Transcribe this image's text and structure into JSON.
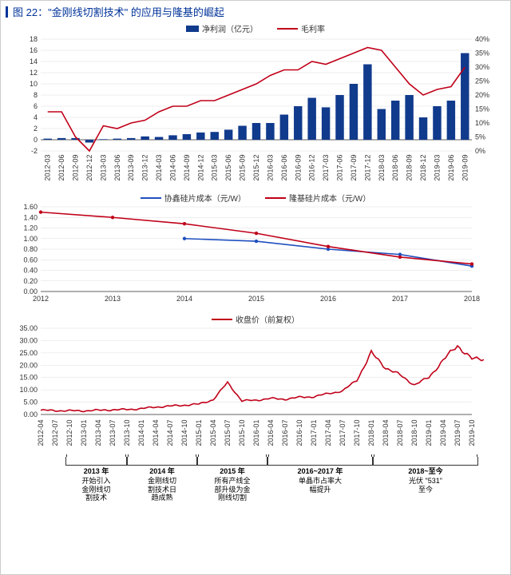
{
  "title": "图 22：\"金刚线切割技术\" 的应用与隆基的崛起",
  "title_color": "#003399",
  "chart1": {
    "type": "combo-bar-line",
    "legend": [
      {
        "label": "净利润（亿元）",
        "kind": "bar",
        "color": "#103a8c"
      },
      {
        "label": "毛利率",
        "kind": "line",
        "color": "#c00018"
      }
    ],
    "y_left": {
      "min": -2,
      "max": 18,
      "step": 2,
      "ticks": [
        "-2",
        "0",
        "2",
        "4",
        "6",
        "8",
        "10",
        "12",
        "14",
        "16",
        "18"
      ]
    },
    "y_right": {
      "min": 0,
      "max": 0.4,
      "step": 0.05,
      "ticks": [
        "0%",
        "5%",
        "10%",
        "15%",
        "20%",
        "25%",
        "30%",
        "35%",
        "40%"
      ]
    },
    "x_labels": [
      "2012-03",
      "2012-06",
      "2012-09",
      "2012-12",
      "2013-03",
      "2013-06",
      "2013-09",
      "2013-12",
      "2014-03",
      "2014-06",
      "2014-09",
      "2014-12",
      "2015-03",
      "2015-06",
      "2015-09",
      "2015-12",
      "2016-03",
      "2016-06",
      "2016-09",
      "2016-12",
      "2017-03",
      "2017-06",
      "2017-09",
      "2017-12",
      "2018-03",
      "2018-06",
      "2018-09",
      "2018-12",
      "2019-03",
      "2019-06",
      "2019-09"
    ],
    "bars": [
      0.2,
      0.3,
      0.3,
      -0.5,
      0.1,
      0.2,
      0.3,
      0.6,
      0.5,
      0.8,
      1.0,
      1.3,
      1.4,
      1.8,
      2.5,
      3.0,
      3.0,
      4.5,
      6.0,
      7.5,
      5.8,
      8.0,
      10.0,
      13.5,
      5.5,
      7.0,
      8.0,
      4.0,
      6.0,
      7.0,
      15.5
    ],
    "line_pct": [
      0.14,
      0.14,
      0.05,
      0.0,
      0.09,
      0.08,
      0.1,
      0.11,
      0.14,
      0.16,
      0.16,
      0.18,
      0.18,
      0.2,
      0.22,
      0.24,
      0.27,
      0.29,
      0.29,
      0.32,
      0.31,
      0.33,
      0.35,
      0.37,
      0.36,
      0.3,
      0.24,
      0.2,
      0.22,
      0.23,
      0.3
    ],
    "bar_color": "#103a8c",
    "line_color": "#c00018",
    "grid_color": "#dddddd",
    "axis_color": "#333333"
  },
  "chart2": {
    "type": "line",
    "legend": [
      {
        "label": "协鑫硅片成本（元/W）",
        "color": "#1f4fbf"
      },
      {
        "label": "隆基硅片成本（元/W）",
        "color": "#c00018"
      }
    ],
    "y": {
      "min": 0,
      "max": 1.6,
      "step": 0.2,
      "ticks": [
        "0.00",
        "0.20",
        "0.40",
        "0.60",
        "0.80",
        "1.00",
        "1.20",
        "1.40",
        "1.60"
      ]
    },
    "x_labels": [
      "2012",
      "2013",
      "2014",
      "2015",
      "2016",
      "2017",
      "2018"
    ],
    "series": [
      {
        "name": "gxc",
        "color": "#1f4fbf",
        "points": [
          [
            2,
            1.0
          ],
          [
            3,
            0.95
          ],
          [
            4,
            0.8
          ],
          [
            5,
            0.7
          ],
          [
            6,
            0.48
          ]
        ]
      },
      {
        "name": "longi",
        "color": "#c00018",
        "points": [
          [
            0,
            1.5
          ],
          [
            1,
            1.4
          ],
          [
            2,
            1.28
          ],
          [
            3,
            1.1
          ],
          [
            4,
            0.85
          ],
          [
            5,
            0.65
          ],
          [
            6,
            0.52
          ]
        ]
      }
    ],
    "grid_color": "#dddddd",
    "axis_color": "#333333"
  },
  "chart3": {
    "type": "line",
    "legend": [
      {
        "label": "收盘价（前复权）",
        "color": "#c00018"
      }
    ],
    "y": {
      "min": 0,
      "max": 35,
      "step": 5,
      "ticks": [
        "0.00",
        "5.00",
        "10.00",
        "15.00",
        "20.00",
        "25.00",
        "30.00",
        "35.00"
      ]
    },
    "x_labels": [
      "2012-04",
      "2012-07",
      "2012-10",
      "2013-01",
      "2013-04",
      "2013-07",
      "2013-10",
      "2014-01",
      "2014-04",
      "2014-07",
      "2014-10",
      "2015-01",
      "2015-04",
      "2015-07",
      "2015-10",
      "2016-01",
      "2016-04",
      "2016-07",
      "2016-10",
      "2017-01",
      "2017-04",
      "2017-07",
      "2017-10",
      "2018-01",
      "2018-04",
      "2018-07",
      "2018-10",
      "2019-01",
      "2019-04",
      "2019-07",
      "2019-10"
    ],
    "values": [
      1.7,
      1.6,
      1.5,
      1.5,
      1.7,
      1.9,
      2.0,
      2.4,
      3.0,
      3.4,
      3.8,
      4.2,
      6.0,
      13.0,
      5.5,
      5.8,
      6.5,
      6.2,
      7.0,
      7.2,
      8.5,
      9.5,
      14.0,
      25.0,
      19.0,
      16.0,
      12.0,
      15.0,
      22.0,
      28.0,
      22.5
    ],
    "line_color": "#c00018",
    "grid_color": "#dddddd",
    "axis_color": "#333333"
  },
  "timeline": [
    {
      "year": "2013 年",
      "text": "开始引入\n金刚线切\n割技术",
      "l": 6,
      "r": 20
    },
    {
      "year": "2014 年",
      "text": "金刚线切\n割技术日\n趋成熟",
      "l": 20,
      "r": 36
    },
    {
      "year": "2015 年",
      "text": "所有产线全\n部升级为金\n刚线切割",
      "l": 36,
      "r": 52
    },
    {
      "year": "2016~2017 年",
      "text": "单晶市占率大\n幅提升",
      "l": 52,
      "r": 76
    },
    {
      "year": "2018~至今",
      "text": "光伏 \"531\"\n 至今",
      "l": 76,
      "r": 100
    }
  ]
}
